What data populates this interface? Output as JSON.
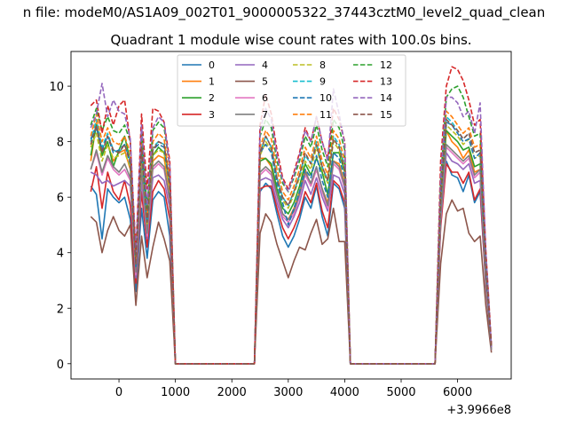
{
  "figure": {
    "suptitle": "n file: modeM0/AS1A09_002T01_9000005322_37443cztM0_level2_quad_clean",
    "title": "Quadrant 1 module wise count rates with 100.0s bins."
  },
  "chart_data": {
    "type": "line",
    "title": "Quadrant 1 module wise count rates with 100.0s bins.",
    "xlabel": "",
    "ylabel": "",
    "x_offset_label": "+3.9966e8",
    "xlim": [
      -850,
      6950
    ],
    "ylim": [
      -0.55,
      11.25
    ],
    "xticks": [
      0,
      1000,
      2000,
      3000,
      4000,
      5000,
      6000
    ],
    "yticks": [
      0,
      2,
      4,
      6,
      8,
      10
    ],
    "grid": false,
    "legend": {
      "location": "upper center",
      "columns": 4
    },
    "x": [
      -500,
      -400,
      -300,
      -200,
      -100,
      0,
      100,
      200,
      300,
      400,
      500,
      600,
      700,
      800,
      900,
      1000,
      1100,
      2400,
      2500,
      2600,
      2700,
      2800,
      2900,
      3000,
      3100,
      3200,
      3300,
      3400,
      3500,
      3600,
      3700,
      3800,
      3900,
      4000,
      4100,
      4200,
      5600,
      5700,
      5800,
      5900,
      6000,
      6100,
      6200,
      6300,
      6400,
      6500,
      6600
    ],
    "series": [
      {
        "name": "0",
        "color": "#1f77b4",
        "dashed": false,
        "values": [
          6.4,
          6.1,
          4.5,
          6.3,
          6.0,
          5.8,
          6.0,
          5.2,
          2.6,
          5.6,
          3.8,
          5.9,
          6.2,
          6.0,
          4.6,
          0,
          0,
          0,
          6.2,
          6.5,
          6.3,
          5.4,
          4.6,
          4.2,
          4.6,
          5.2,
          6.0,
          5.6,
          6.4,
          5.3,
          4.6,
          6.5,
          6.3,
          5.6,
          0,
          0,
          0,
          5.0,
          7.3,
          6.8,
          6.7,
          6.2,
          6.8,
          5.8,
          6.2,
          2.8,
          0.5
        ]
      },
      {
        "name": "1",
        "color": "#ff7f0e",
        "dashed": false,
        "values": [
          7.3,
          8.7,
          7.6,
          7.9,
          7.3,
          7.6,
          7.7,
          7.0,
          3.4,
          7.4,
          5.0,
          7.3,
          7.5,
          7.4,
          6.2,
          0,
          0,
          0,
          7.4,
          7.4,
          7.1,
          6.1,
          5.4,
          5.2,
          5.6,
          6.2,
          7.0,
          6.4,
          7.0,
          6.3,
          5.8,
          7.3,
          7.2,
          6.5,
          0,
          0,
          0,
          5.6,
          8.4,
          8.0,
          7.8,
          7.4,
          7.7,
          6.9,
          7.0,
          3.3,
          0.6
        ]
      },
      {
        "name": "2",
        "color": "#2ca02c",
        "dashed": false,
        "values": [
          7.5,
          8.6,
          7.5,
          8.0,
          7.1,
          7.7,
          8.2,
          7.3,
          3.6,
          7.6,
          5.1,
          7.5,
          7.8,
          7.6,
          6.5,
          0,
          0,
          0,
          7.3,
          7.4,
          7.2,
          6.3,
          5.6,
          5.4,
          5.8,
          6.4,
          7.2,
          6.8,
          7.4,
          6.9,
          6.1,
          7.6,
          7.6,
          6.9,
          0,
          0,
          0,
          5.5,
          8.4,
          8.2,
          8.0,
          7.7,
          7.8,
          7.1,
          7.2,
          3.2,
          0.6
        ]
      },
      {
        "name": "3",
        "color": "#d62728",
        "dashed": false,
        "values": [
          6.2,
          7.1,
          5.6,
          6.9,
          6.2,
          5.9,
          6.6,
          5.7,
          2.9,
          6.2,
          4.2,
          6.2,
          6.6,
          6.3,
          5.2,
          0,
          0,
          0,
          6.3,
          6.4,
          6.4,
          5.6,
          4.9,
          4.5,
          4.9,
          5.4,
          6.2,
          5.8,
          6.5,
          5.5,
          4.9,
          6.6,
          6.4,
          5.8,
          0,
          0,
          0,
          4.9,
          7.2,
          6.9,
          6.9,
          6.5,
          6.9,
          5.9,
          6.3,
          2.9,
          0.5
        ]
      },
      {
        "name": "4",
        "color": "#9467bd",
        "dashed": false,
        "values": [
          6.9,
          6.8,
          6.5,
          6.6,
          6.4,
          6.5,
          6.6,
          6.4,
          3.1,
          6.6,
          4.5,
          6.7,
          6.8,
          6.6,
          5.6,
          0,
          0,
          0,
          6.6,
          6.7,
          6.6,
          5.8,
          5.2,
          4.9,
          5.3,
          5.8,
          6.6,
          6.1,
          6.7,
          6.0,
          5.5,
          6.8,
          6.7,
          6.1,
          0,
          0,
          0,
          5.1,
          7.6,
          7.3,
          7.2,
          7.0,
          7.2,
          6.5,
          6.6,
          3.1,
          0.5
        ]
      },
      {
        "name": "5",
        "color": "#8c564b",
        "dashed": false,
        "values": [
          5.3,
          5.1,
          4.0,
          4.8,
          5.3,
          4.8,
          4.6,
          5.0,
          2.1,
          4.6,
          3.1,
          4.2,
          5.1,
          4.5,
          3.7,
          0,
          0,
          0,
          4.7,
          5.4,
          5.1,
          4.3,
          3.7,
          3.1,
          3.7,
          4.2,
          4.1,
          4.7,
          5.2,
          4.3,
          4.5,
          5.6,
          4.4,
          4.4,
          0,
          0,
          0,
          3.6,
          5.4,
          5.9,
          5.5,
          5.6,
          4.7,
          4.4,
          4.6,
          2.1,
          0.4
        ]
      },
      {
        "name": "6",
        "color": "#e377c2",
        "dashed": false,
        "values": [
          7.0,
          7.6,
          6.8,
          7.4,
          7.0,
          6.8,
          7.0,
          6.6,
          3.2,
          6.9,
          4.6,
          7.0,
          7.2,
          7.0,
          5.8,
          0,
          0,
          0,
          6.8,
          7.0,
          6.8,
          6.0,
          5.3,
          5.1,
          5.4,
          6.0,
          6.8,
          6.4,
          7.0,
          6.2,
          5.6,
          7.2,
          7.0,
          6.3,
          0,
          0,
          0,
          5.2,
          7.8,
          7.6,
          7.4,
          7.2,
          7.4,
          6.7,
          6.9,
          3.2,
          0.5
        ]
      },
      {
        "name": "7",
        "color": "#7f7f7f",
        "dashed": false,
        "values": [
          7.0,
          7.7,
          6.9,
          7.5,
          7.1,
          6.9,
          7.2,
          6.7,
          3.3,
          7.0,
          4.7,
          7.1,
          7.3,
          7.1,
          5.9,
          0,
          0,
          0,
          6.9,
          7.1,
          6.9,
          6.1,
          5.4,
          5.2,
          5.5,
          6.1,
          6.9,
          6.5,
          7.1,
          6.3,
          5.7,
          7.3,
          7.1,
          6.4,
          0,
          0,
          0,
          5.3,
          7.9,
          7.7,
          7.5,
          7.3,
          7.5,
          6.8,
          7.0,
          3.2,
          0.5
        ]
      },
      {
        "name": "8",
        "color": "#bcbd22",
        "dashed": true,
        "values": [
          7.8,
          8.3,
          7.3,
          7.9,
          7.4,
          7.5,
          7.6,
          7.1,
          3.5,
          7.5,
          5.0,
          7.5,
          7.7,
          7.6,
          6.3,
          0,
          0,
          0,
          7.5,
          8.0,
          7.7,
          6.6,
          5.9,
          5.6,
          6.1,
          6.7,
          7.3,
          7.0,
          7.8,
          7.0,
          6.5,
          8.0,
          7.7,
          7.0,
          0,
          0,
          0,
          5.9,
          8.6,
          8.4,
          8.2,
          7.9,
          8.1,
          7.4,
          7.5,
          3.5,
          0.6
        ]
      },
      {
        "name": "9",
        "color": "#17becf",
        "dashed": true,
        "values": [
          8.0,
          8.8,
          7.8,
          8.3,
          7.7,
          7.6,
          7.9,
          7.3,
          3.6,
          7.8,
          5.1,
          7.8,
          8.0,
          7.9,
          6.5,
          0,
          0,
          0,
          7.6,
          8.2,
          7.8,
          6.7,
          6.0,
          5.7,
          6.2,
          6.8,
          7.5,
          7.2,
          8.0,
          7.1,
          6.6,
          8.2,
          7.9,
          7.1,
          0,
          0,
          0,
          6.0,
          8.9,
          8.7,
          8.4,
          8.1,
          8.3,
          7.6,
          7.7,
          3.6,
          0.6
        ]
      },
      {
        "name": "10",
        "color": "#1f77b4",
        "dashed": true,
        "values": [
          8.1,
          8.5,
          7.7,
          8.2,
          7.6,
          7.7,
          7.9,
          7.2,
          3.5,
          7.7,
          5.1,
          7.7,
          7.9,
          7.8,
          6.4,
          0,
          0,
          0,
          7.6,
          7.9,
          7.6,
          6.5,
          5.8,
          5.0,
          5.6,
          6.2,
          7.0,
          6.7,
          7.5,
          6.6,
          6.0,
          7.6,
          7.4,
          6.7,
          0,
          0,
          0,
          6.0,
          8.7,
          8.6,
          8.3,
          8.0,
          8.1,
          7.4,
          7.6,
          3.5,
          0.6
        ]
      },
      {
        "name": "11",
        "color": "#ff7f0e",
        "dashed": true,
        "values": [
          8.2,
          9.0,
          8.0,
          8.5,
          8.0,
          7.9,
          8.2,
          7.6,
          3.7,
          8.0,
          5.3,
          8.0,
          8.3,
          8.1,
          6.7,
          0,
          0,
          0,
          7.8,
          8.4,
          8.1,
          7.0,
          6.2,
          5.9,
          6.4,
          7.0,
          7.8,
          7.4,
          8.2,
          7.3,
          6.8,
          8.4,
          8.1,
          7.3,
          0,
          0,
          0,
          6.2,
          9.1,
          8.9,
          8.6,
          8.3,
          8.5,
          7.8,
          7.9,
          3.7,
          0.6
        ]
      },
      {
        "name": "12",
        "color": "#2ca02c",
        "dashed": true,
        "values": [
          8.6,
          9.2,
          8.4,
          8.9,
          8.4,
          8.3,
          8.6,
          8.0,
          3.9,
          8.4,
          5.6,
          8.4,
          8.7,
          8.5,
          7.1,
          0,
          0,
          0,
          8.2,
          8.8,
          8.5,
          7.3,
          6.5,
          6.2,
          6.7,
          7.3,
          8.2,
          7.8,
          8.6,
          7.7,
          7.1,
          8.8,
          8.5,
          7.7,
          0,
          0,
          0,
          6.6,
          9.6,
          9.9,
          10.0,
          9.6,
          8.9,
          8.2,
          8.3,
          3.9,
          0.6
        ]
      },
      {
        "name": "13",
        "color": "#d62728",
        "dashed": true,
        "values": [
          9.3,
          9.5,
          8.3,
          9.3,
          8.6,
          9.3,
          9.5,
          8.0,
          4.0,
          9.0,
          6.3,
          9.2,
          9.1,
          8.7,
          7.3,
          0,
          0,
          0,
          8.6,
          9.7,
          9.0,
          7.7,
          6.7,
          6.3,
          6.9,
          7.6,
          8.5,
          8.0,
          8.9,
          8.0,
          7.4,
          9.2,
          8.8,
          8.0,
          0,
          0,
          0,
          7.3,
          10.0,
          10.7,
          10.6,
          10.2,
          9.5,
          8.6,
          8.8,
          4.1,
          0.7
        ]
      },
      {
        "name": "14",
        "color": "#9467bd",
        "dashed": true,
        "values": [
          8.5,
          9.0,
          10.1,
          8.9,
          9.5,
          9.1,
          9.0,
          8.1,
          3.9,
          8.6,
          5.7,
          8.5,
          8.9,
          8.7,
          7.1,
          0,
          0,
          0,
          8.4,
          9.2,
          8.8,
          7.5,
          6.6,
          6.2,
          6.8,
          7.5,
          8.4,
          8.0,
          8.9,
          8.0,
          7.3,
          9.9,
          9.0,
          7.9,
          0,
          0,
          0,
          6.7,
          9.6,
          9.6,
          9.4,
          8.9,
          9.1,
          8.3,
          9.4,
          4.0,
          0.6
        ]
      },
      {
        "name": "15",
        "color": "#8c564b",
        "dashed": true,
        "values": [
          7.9,
          8.6,
          7.6,
          8.2,
          7.7,
          7.6,
          7.9,
          7.3,
          3.6,
          7.8,
          5.1,
          7.7,
          8.0,
          7.9,
          6.5,
          0,
          0,
          0,
          7.6,
          8.2,
          7.8,
          6.7,
          6.0,
          5.7,
          6.2,
          6.8,
          7.6,
          7.2,
          7.9,
          7.1,
          6.6,
          8.1,
          7.8,
          7.0,
          0,
          0,
          0,
          6.0,
          8.8,
          8.6,
          8.4,
          8.1,
          8.3,
          7.6,
          7.7,
          3.6,
          0.6
        ]
      }
    ]
  }
}
